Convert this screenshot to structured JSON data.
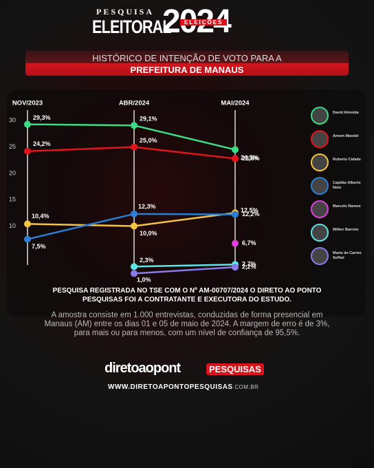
{
  "header": {
    "kicker": "PESQUISA",
    "brand": "ELEITORAL",
    "year": "2024",
    "badge": "ELEIÇÕES"
  },
  "banner": {
    "line1": "HISTÓRICO DE INTENÇÃO DE VOTO PARA A",
    "line2": "PREFEITURA DE MANAUS"
  },
  "chart_data": {
    "type": "line",
    "categories": [
      "NOV/2023",
      "ABR/2024",
      "MAI/2024"
    ],
    "ylim": [
      0,
      32
    ],
    "yticks": [
      10,
      15,
      20,
      25,
      30
    ],
    "series": [
      {
        "name": "David Almeida",
        "color": "#3ddc84",
        "values": [
          29.3,
          29.1,
          24.5
        ],
        "value_labels": [
          "29,3%",
          "29,1%",
          "24,5%"
        ]
      },
      {
        "name": "Amom Mandel",
        "color": "#e3141b",
        "values": [
          24.2,
          25.0,
          22.8
        ],
        "value_labels": [
          "24,2%",
          "25,0%",
          "22,8%"
        ]
      },
      {
        "name": "Roberto Cidade",
        "color": "#f6c443",
        "values": [
          10.4,
          10.0,
          12.5
        ],
        "value_labels": [
          "10,4%",
          "10,0%",
          "12,5%"
        ]
      },
      {
        "name": "Capitão Alberto Neto",
        "color": "#2a7fd4",
        "values": [
          7.5,
          12.3,
          12.2
        ],
        "value_labels": [
          "7,5%",
          "12,3%",
          "12,2%"
        ]
      },
      {
        "name": "Marcelo Ramos",
        "color": "#e040e0",
        "values": [
          null,
          null,
          6.7
        ],
        "value_labels": [
          null,
          null,
          "6,7%"
        ]
      },
      {
        "name": "Wilker Barreto",
        "color": "#5ee6e6",
        "values": [
          null,
          2.3,
          2.7
        ],
        "value_labels": [
          null,
          "2,3%",
          "2,7%"
        ]
      },
      {
        "name": "Maria do Carmo Seffair",
        "color": "#8a7ce8",
        "values": [
          null,
          1.0,
          2.2
        ],
        "value_labels": [
          null,
          "1,0%",
          "2,2%"
        ]
      }
    ]
  },
  "footer": {
    "registration": "PESQUISA REGISTRADA NO TSE COM O Nº AM-00707/2024 O DIRETO AO PONTO PESQUISAS FOI A  CONTRATANTE E EXECUTORA DO ESTUDO.",
    "methodology": "A amostra consiste em 1.000 entrevistas, conduzidas de forma presencial em Manaus (AM) entre os dias 01 e 05 de maio de 2024. A margem de erro é de 3%, para mais ou para menos, com um nível de confiança de 95,5%.",
    "logo": "diretoaopont",
    "logo_tag": "PESQUISAS",
    "url": "WWW.DIRETOAPONTOPESQUISAS",
    "url_suffix": ".COM.BR"
  }
}
